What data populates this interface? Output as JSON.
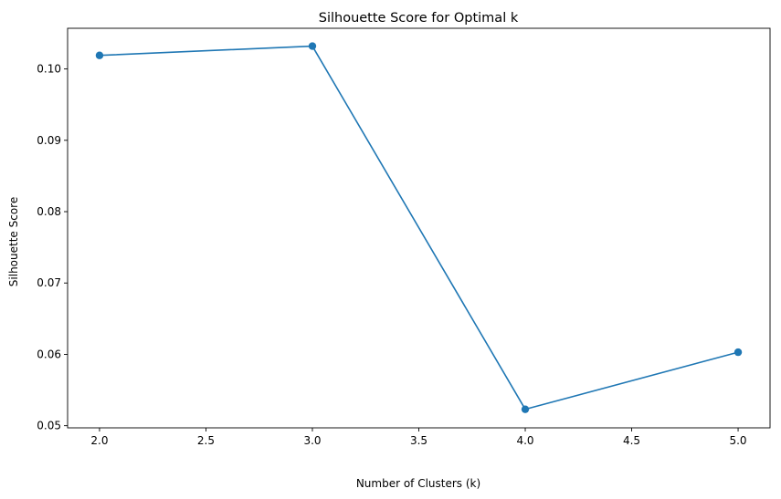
{
  "chart_data": {
    "type": "line",
    "title": "Silhouette Score for Optimal k",
    "xlabel": "Number of Clusters (k)",
    "ylabel": "Silhouette Score",
    "x": [
      2,
      3,
      4,
      5
    ],
    "series": [
      {
        "values": [
          0.1019,
          0.1032,
          0.0523,
          0.0603
        ]
      }
    ],
    "xlim": [
      1.85,
      5.15
    ],
    "ylim": [
      0.0497,
      0.1057
    ],
    "xticks": [
      2.0,
      2.5,
      3.0,
      3.5,
      4.0,
      4.5,
      5.0
    ],
    "xtick_labels": [
      "2.0",
      "2.5",
      "3.0",
      "3.5",
      "4.0",
      "4.5",
      "5.0"
    ],
    "yticks": [
      0.05,
      0.06,
      0.07,
      0.08,
      0.09,
      0.1
    ],
    "ytick_labels": [
      "0.05",
      "0.06",
      "0.07",
      "0.08",
      "0.09",
      "0.10"
    ],
    "grid": false,
    "marker": "circle",
    "colors": {
      "series": "#1f77b4",
      "axes": "#000000",
      "background": "#ffffff"
    }
  }
}
